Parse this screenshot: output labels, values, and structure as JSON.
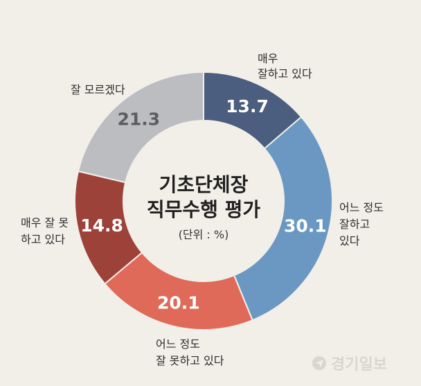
{
  "chart_data": {
    "type": "pie",
    "title": "기초단체장 직무수행 평가",
    "title_lines": [
      "기초단체장",
      "직무수행 평가"
    ],
    "subtitle": "(단위 : %)",
    "donut": true,
    "categories": [
      "매우 잘하고 있다",
      "어느 정도 잘하고 있다",
      "어느 정도 잘 못하고 있다",
      "매우 잘 못하고 있다",
      "잘 모르겠다"
    ],
    "category_lines": [
      [
        "매우",
        "잘하고 있다"
      ],
      [
        "어느 정도",
        "잘하고",
        "있다"
      ],
      [
        "어느 정도",
        "잘 못하고 있다"
      ],
      [
        "매우 잘 못",
        "하고 있다"
      ],
      [
        "잘 모르겠다"
      ]
    ],
    "values": [
      13.7,
      30.1,
      20.1,
      14.8,
      21.3
    ],
    "value_labels": [
      "13.7",
      "30.1",
      "20.1",
      "14.8",
      "21.3"
    ],
    "colors": [
      "#4b5e7f",
      "#6b98c2",
      "#e06a5a",
      "#9c4239",
      "#bcbdc1"
    ],
    "label_colors": [
      "#ffffff",
      "#ffffff",
      "#ffffff",
      "#ffffff",
      "#5d5d5f"
    ],
    "start_angle_deg": 0,
    "direction": "clockwise"
  },
  "watermark": {
    "text": "경기일보",
    "icon": "paper-plane-icon"
  }
}
